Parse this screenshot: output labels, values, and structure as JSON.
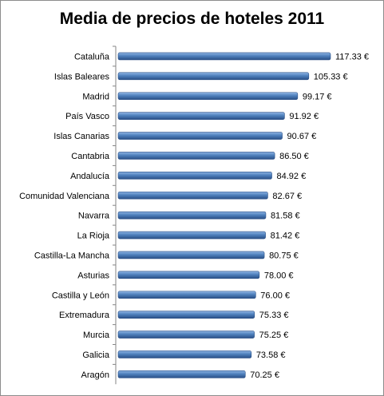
{
  "chart_data": {
    "type": "bar",
    "orientation": "horizontal",
    "title": "Media de precios de hoteles 2011",
    "xlabel": "",
    "ylabel": "",
    "xlim": [
      0,
      120
    ],
    "grid": false,
    "legend": "none",
    "categories": [
      "Cataluña",
      "Islas Baleares",
      "Madrid",
      "País Vasco",
      "Islas Canarias",
      "Cantabria",
      "Andalucía",
      "Comunidad Valenciana",
      "Navarra",
      "La Rioja",
      "Castilla-La Mancha",
      "Asturias",
      "Castilla y León",
      "Extremadura",
      "Murcia",
      "Galicia",
      "Aragón"
    ],
    "values": [
      117.33,
      105.33,
      99.17,
      91.92,
      90.67,
      86.5,
      84.92,
      82.67,
      81.58,
      81.42,
      80.75,
      78.0,
      76.0,
      75.33,
      75.25,
      73.58,
      70.25
    ],
    "value_labels": [
      "117.33 €",
      "105.33 €",
      "99.17 €",
      "91.92 €",
      "90.67 €",
      "86.50 €",
      "84.92 €",
      "82.67 €",
      "81.58 €",
      "81.42 €",
      "80.75 €",
      "78.00 €",
      "76.00 €",
      "75.33 €",
      "75.25 €",
      "73.58 €",
      "70.25 €"
    ],
    "colors": {
      "bar_light": "#8fb4e3",
      "bar_mid": "#4f81bd",
      "bar_dark": "#2a4f86",
      "axis": "#868686"
    }
  }
}
